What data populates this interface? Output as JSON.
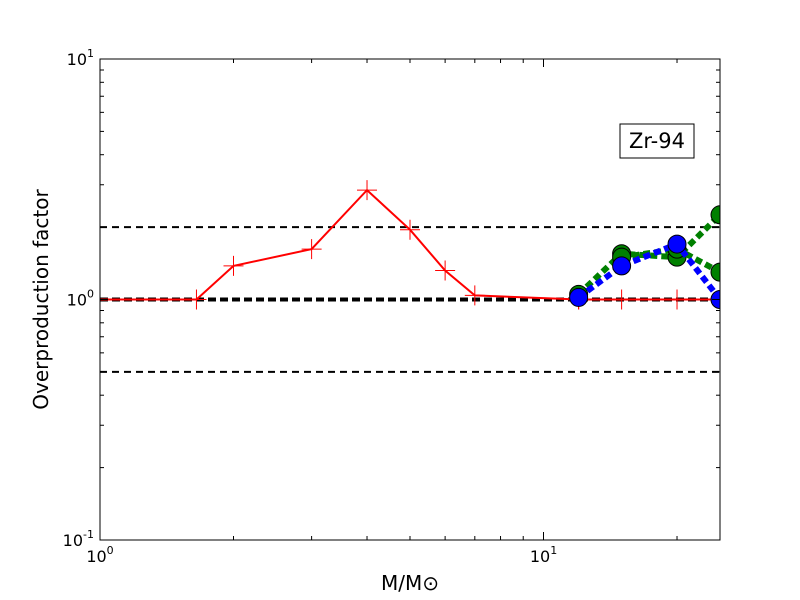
{
  "chart_data": {
    "type": "line",
    "xscale": "log",
    "yscale": "log",
    "xlim": [
      1,
      25
    ],
    "ylim": [
      0.1,
      10
    ],
    "xlabel": "M/M⊙",
    "ylabel": "Overproduction factor",
    "xticks": [
      {
        "base": "10",
        "exp": "0",
        "value": 1
      },
      {
        "base": "10",
        "exp": "1",
        "value": 10
      }
    ],
    "yticks": [
      {
        "base": "10",
        "exp": "-1",
        "value": 0.1
      },
      {
        "base": "10",
        "exp": "0",
        "value": 1
      },
      {
        "base": "10",
        "exp": "1",
        "value": 10
      }
    ],
    "annotation": "Zr-94",
    "annotation_position": "upper-right",
    "reference_lines": [
      {
        "y": 2.0,
        "style": "dashed"
      },
      {
        "y": 1.0,
        "style": "dashed-thick"
      },
      {
        "y": 0.5,
        "style": "dashed"
      }
    ],
    "series": [
      {
        "color": "#ff0000",
        "line": "solid",
        "marker": "plus",
        "x": [
          1.0,
          1.65,
          2.0,
          3.0,
          4.0,
          5.0,
          6.0,
          7.0,
          12.0
        ],
        "y": [
          1.0,
          1.0,
          1.38,
          1.62,
          2.85,
          1.95,
          1.32,
          1.04,
          1.0
        ]
      },
      {
        "color": "#ff0000",
        "line": "solid",
        "marker": "plus",
        "x": [
          12.0,
          15.0,
          20.0,
          25.0
        ],
        "y": [
          1.0,
          1.0,
          1.0,
          1.0
        ]
      },
      {
        "color": "#008000",
        "line": "dotted",
        "marker": "circle",
        "x": [
          12.0,
          15.0,
          20.0,
          25.0
        ],
        "y": [
          1.05,
          1.55,
          1.5,
          2.25
        ]
      },
      {
        "color": "#008000",
        "line": "dotted",
        "marker": "circle",
        "x": [
          15.0,
          20.0,
          25.0
        ],
        "y": [
          1.5,
          1.62,
          1.3
        ]
      },
      {
        "color": "#0000ff",
        "line": "dotted",
        "marker": "circle",
        "x": [
          12.0,
          15.0,
          20.0,
          25.0
        ],
        "y": [
          1.02,
          1.38,
          1.7,
          1.0
        ]
      }
    ]
  }
}
